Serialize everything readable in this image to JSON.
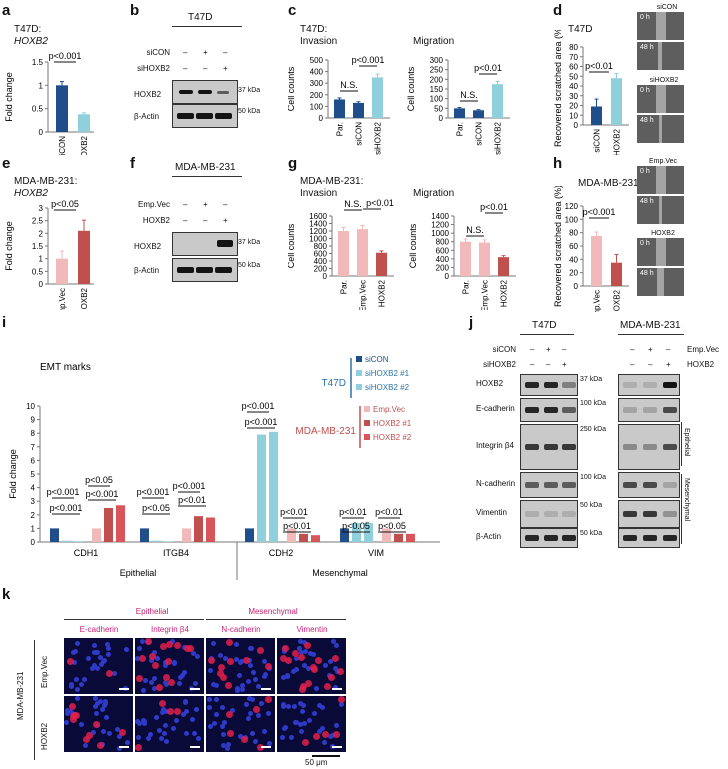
{
  "panels": {
    "a": "a",
    "b": "b",
    "c": "c",
    "d": "d",
    "e": "e",
    "f": "f",
    "g": "g",
    "h": "h",
    "i": "i",
    "j": "j",
    "k": "k"
  },
  "a": {
    "title1": "T47D:",
    "title2": "HOXB2",
    "ylabel": "Fold change",
    "sig": "p<0.001",
    "ticks": [
      "0",
      "0.5",
      "1",
      "1.5"
    ]
  },
  "b": {
    "cell": "T47D",
    "rows": [
      "siCON",
      "siHOXB2"
    ],
    "row1": [
      "–",
      "+",
      "–"
    ],
    "row2": [
      "–",
      "–",
      "+"
    ],
    "blot1": "HOXB2",
    "blot2": "β-Actin",
    "mw1": "37 kDa",
    "mw2": "50 kDa"
  },
  "c": {
    "title1": "T47D:",
    "title2": "Invasion",
    "title3": "Migration",
    "ylabel": "Cell counts",
    "sig_ns": "N.S.",
    "sig1": "p<0.001",
    "sig2": "p<0.01",
    "inv_ticks": [
      "0",
      "100",
      "200",
      "300",
      "400",
      "500"
    ],
    "mig_ticks": [
      "0",
      "50",
      "100",
      "150",
      "200",
      "250",
      "300"
    ]
  },
  "d": {
    "title": "T47D",
    "ylabel": "Recovered scratched area (%)",
    "sig": "p<0.01",
    "ticks": [
      "0",
      "10",
      "20",
      "30",
      "40",
      "50",
      "60",
      "70",
      "80"
    ],
    "img1": "siCON",
    "img2": "siHOXB2",
    "t0": "0 h",
    "t48": "48 h"
  },
  "e": {
    "title1": "MDA-MB-231:",
    "title2": "HOXB2",
    "ylabel": "Fold change",
    "sig": "p<0.05",
    "ticks": [
      "0",
      "0.5",
      "1",
      "1.5",
      "2",
      "2.5",
      "3"
    ]
  },
  "f": {
    "cell": "MDA-MB-231",
    "rows": [
      "Emp.Vec",
      "HOXB2"
    ],
    "row1": [
      "–",
      "+",
      "–"
    ],
    "row2": [
      "–",
      "–",
      "+"
    ],
    "blot1": "HOXB2",
    "blot2": "β-Actin",
    "mw1": "37 kDa",
    "mw2": "50 kDa"
  },
  "g": {
    "title1": "MDA-MB-231:",
    "title2": "Invasion",
    "title3": "Migration",
    "ylabel": "Cell counts",
    "sig_ns": "N.S.",
    "sig": "p<0.01",
    "inv_ticks": [
      "0",
      "200",
      "400",
      "600",
      "800",
      "1000",
      "1200",
      "1400",
      "1600"
    ],
    "mig_ticks": [
      "0",
      "200",
      "400",
      "600",
      "800",
      "1000",
      "1200",
      "1400"
    ]
  },
  "h": {
    "title": "MDA-MB-231",
    "ylabel": "Recovered scratched area (%)",
    "sig": "p<0.001",
    "ticks": [
      "0",
      "20",
      "40",
      "60",
      "80",
      "100",
      "120"
    ],
    "img1": "Emp.Vec",
    "img2": "HOXB2",
    "t0": "0 h",
    "t48": "48 h"
  },
  "i": {
    "title": "EMT marks",
    "ylabel": "Fold change",
    "ticks": [
      "0",
      "1",
      "2",
      "3",
      "4",
      "5",
      "6",
      "7",
      "8",
      "9",
      "10"
    ],
    "t47d": "T47D",
    "mda": "MDA-MB-231",
    "legend": [
      "siCON",
      "siHOXB2 #1",
      "siHOXB2 #2",
      "Emp.Vec",
      "HOXB2 #1",
      "HOXB2 #2"
    ],
    "genes": [
      "CDH1",
      "ITGB4",
      "CDH2",
      "VIM"
    ],
    "groups": [
      "Epithelial",
      "Mesenchymal"
    ],
    "p": [
      "p<0.001",
      "p<0.001",
      "p<0.05",
      "p<0.001",
      "p<0.001",
      "p<0.05",
      "p<0.001",
      "p<0.01",
      "p<0.001",
      "p<0.001",
      "p<0.01",
      "p<0.01",
      "p<0.01",
      "p<0.05",
      "p<0.01",
      "p<0.05"
    ]
  },
  "j": {
    "cell1": "T47D",
    "cell2": "MDA-MB-231",
    "rows": [
      "siCON",
      "siHOXB2"
    ],
    "rowsR": [
      "Emp.Vec",
      "HOXB2"
    ],
    "sym1": [
      "–",
      "+",
      "–"
    ],
    "sym2": [
      "–",
      "–",
      "+"
    ],
    "blots": [
      "HOXB2",
      "E-cadherin",
      "Integrin β4",
      "N-cadherin",
      "Vimentin",
      "β-Actin"
    ],
    "mw": [
      "37 kDa",
      "100 kDa",
      "250 kDa",
      "100 kDa",
      "50 kDa",
      "50 kDa"
    ],
    "grp1": "Epithelial",
    "grp2": "Mesenchymal"
  },
  "k": {
    "grp1": "Epithelial",
    "grp2": "Mesenchymal",
    "cols": [
      "E-cadherin",
      "Integrin β4",
      "N-cadherin",
      "Vimentin"
    ],
    "rows": [
      "Emp.Vec",
      "HOXB2"
    ],
    "cell": "MDA-MB-231",
    "scale": "50 μm"
  },
  "colors": {
    "darkblue": "#1f4e8a",
    "lightblue": "#8fd0dc",
    "pink": "#f2b9bb",
    "darkred": "#c0504d",
    "red": "#d9555a",
    "magenta": "#d0217a"
  },
  "chart_data": [
    {
      "type": "bar",
      "panel": "a",
      "categories": [
        "siCON",
        "siHOXB2"
      ],
      "values": [
        1.0,
        0.38
      ],
      "ylabel": "Fold change",
      "ylim": [
        0,
        1.5
      ]
    },
    {
      "type": "bar",
      "panel": "c-invasion",
      "categories": [
        "Par.",
        "siCON",
        "siHOXB2"
      ],
      "values": [
        160,
        130,
        350
      ],
      "ylabel": "Cell counts",
      "ylim": [
        0,
        500
      ]
    },
    {
      "type": "bar",
      "panel": "c-migration",
      "categories": [
        "Par.",
        "siCON",
        "siHOXB2"
      ],
      "values": [
        50,
        40,
        175
      ],
      "ylim": [
        0,
        300
      ]
    },
    {
      "type": "bar",
      "panel": "d",
      "categories": [
        "siCON",
        "siHOXB2"
      ],
      "values": [
        19,
        48
      ],
      "ylabel": "Recovered scratched area (%)",
      "ylim": [
        0,
        80
      ]
    },
    {
      "type": "bar",
      "panel": "e",
      "categories": [
        "Emp.Vec",
        "HOXB2"
      ],
      "values": [
        1.0,
        2.1
      ],
      "ylabel": "Fold change",
      "ylim": [
        0,
        3
      ]
    },
    {
      "type": "bar",
      "panel": "g-invasion",
      "categories": [
        "Par.",
        "Emp.Vec",
        "HOXB2"
      ],
      "values": [
        1200,
        1250,
        620
      ],
      "ylabel": "Cell counts",
      "ylim": [
        0,
        1600
      ]
    },
    {
      "type": "bar",
      "panel": "g-migration",
      "categories": [
        "Par.",
        "Emp.Vec",
        "HOXB2"
      ],
      "values": [
        800,
        780,
        440
      ],
      "ylim": [
        0,
        1400
      ]
    },
    {
      "type": "bar",
      "panel": "h",
      "categories": [
        "Emp.Vec",
        "HOXB2"
      ],
      "values": [
        75,
        35
      ],
      "ylabel": "Recovered scratched area (%)",
      "ylim": [
        0,
        120
      ]
    },
    {
      "type": "bar",
      "panel": "i",
      "categories": [
        "CDH1",
        "ITGB4",
        "CDH2",
        "VIM"
      ],
      "ylabel": "Fold change",
      "ylim": [
        0,
        10
      ],
      "series": [
        {
          "name": "siCON",
          "values": [
            1,
            1,
            1,
            1
          ]
        },
        {
          "name": "siHOXB2 #1",
          "values": [
            0.1,
            0.1,
            7.9,
            1.4
          ]
        },
        {
          "name": "siHOXB2 #2",
          "values": [
            0.05,
            0.05,
            8.1,
            1.4
          ]
        },
        {
          "name": "Emp.Vec",
          "values": [
            1,
            1,
            1,
            1
          ]
        },
        {
          "name": "HOXB2 #1",
          "values": [
            2.5,
            1.9,
            0.6,
            0.6
          ]
        },
        {
          "name": "HOXB2 #2",
          "values": [
            2.7,
            1.8,
            0.5,
            0.6
          ]
        }
      ]
    }
  ]
}
